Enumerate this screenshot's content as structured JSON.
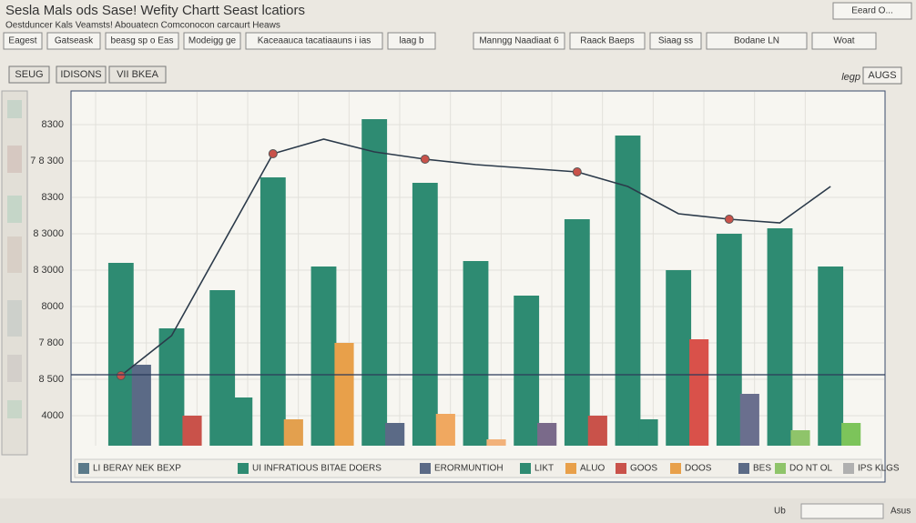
{
  "window": {
    "title": "Sesla Mals ods Sase!  Wefity Chartt Seast lcatiors",
    "top_right": "Eeard O...",
    "toolbar": [
      "Eagest",
      "Gatseask",
      "beasg sp o Eas",
      "Modeigg ge",
      "Kaceaauca tacatiaauns i ias",
      "laag b",
      "Manngg Naadiaat 6",
      "Raack Baeps",
      "Siaag ss",
      "Bodane LN",
      "Woat"
    ],
    "subtitle": "Oestduncer Kals Veamsts!  Abouatecn  Comconocon carcaurt Heaws"
  },
  "tabs": [
    "SEUG",
    "IDISONS",
    "VII BKEA"
  ],
  "right_label": "legp",
  "right_button": "AUGS",
  "chart_data": {
    "type": "bar",
    "categories": [
      null,
      null,
      null,
      null,
      null,
      null,
      null,
      null,
      null,
      null,
      null,
      null,
      null,
      null,
      null
    ],
    "values": [
      5.2,
      3.4,
      4.45,
      7.55,
      5.1,
      9.15,
      7.4,
      5.25,
      4.3,
      6.4,
      8.7,
      5.0,
      6.0,
      6.15,
      5.1
    ],
    "colors": [
      "#2e8b72",
      "#2e8b72",
      "#2e8b72",
      "#2e8b72",
      "#2e8b72",
      "#2e8b72",
      "#2e8b72",
      "#2e8b72",
      "#2e8b72",
      "#2e8b72",
      "#2e8b72",
      "#2e8b72",
      "#2e8b72",
      "#2e8b72",
      "#2e8b72"
    ],
    "accent_values": [
      2.4,
      1.0,
      1.5,
      0.9,
      3.0,
      0.8,
      1.05,
      0.35,
      0.8,
      1.0,
      0.9,
      3.1,
      1.6,
      0.6,
      0.8
    ],
    "accent_colors": [
      "#5b6a86",
      "#c9524a",
      "#2e8b72",
      "#e3a04e",
      "#e8a04a",
      "#5b6a86",
      "#f0a860",
      "#f2b27a",
      "#7a6a8a",
      "#c9524a",
      "#2e8b72",
      "#d9514a",
      "#6a6f8e",
      "#8fc46a",
      "#7cc45a"
    ],
    "line": {
      "color": "#2b3a4a",
      "values": [
        2.1,
        3.2,
        5.7,
        8.2,
        8.6,
        8.25,
        8.05,
        7.9,
        7.8,
        7.7,
        7.3,
        6.55,
        6.4,
        6.3,
        7.3
      ]
    },
    "ylim": [
      0,
      10
    ],
    "yticks": [
      {
        "value": 9,
        "label": "8300"
      },
      {
        "value": 8,
        "label": "7 8 300"
      },
      {
        "value": 7,
        "label": "8300"
      },
      {
        "value": 6,
        "label": "8 3000"
      },
      {
        "value": 5,
        "label": "8 3000"
      },
      {
        "value": 4,
        "label": "8000"
      },
      {
        "value": 3,
        "label": "7 800"
      },
      {
        "value": 2,
        "label": "8 500"
      },
      {
        "value": 1,
        "label": "4000"
      }
    ],
    "grid": true,
    "legend": [
      {
        "label": "LI BERAY NEK BEXP",
        "color": "#5b7a8a"
      },
      {
        "label": "UI INFRATIOUS BITAE DOERS",
        "color": "#2e8b72"
      },
      {
        "label": "ERORMUNTIOH",
        "color": "#5b6a86"
      },
      {
        "label": "LIKT",
        "color": "#2e8b72"
      },
      {
        "label": "ALUO",
        "color": "#e8a04a"
      },
      {
        "label": "GOOS",
        "color": "#c9524a"
      },
      {
        "label": "DOOS",
        "color": "#e8a04a"
      },
      {
        "label": "BES",
        "color": "#5b6a86"
      },
      {
        "label": "DO NT OL",
        "color": "#8fc46a"
      },
      {
        "label": "IPS KLGS",
        "color": "#b0b0b0"
      }
    ]
  },
  "status": [
    "Ub",
    "Asus"
  ]
}
